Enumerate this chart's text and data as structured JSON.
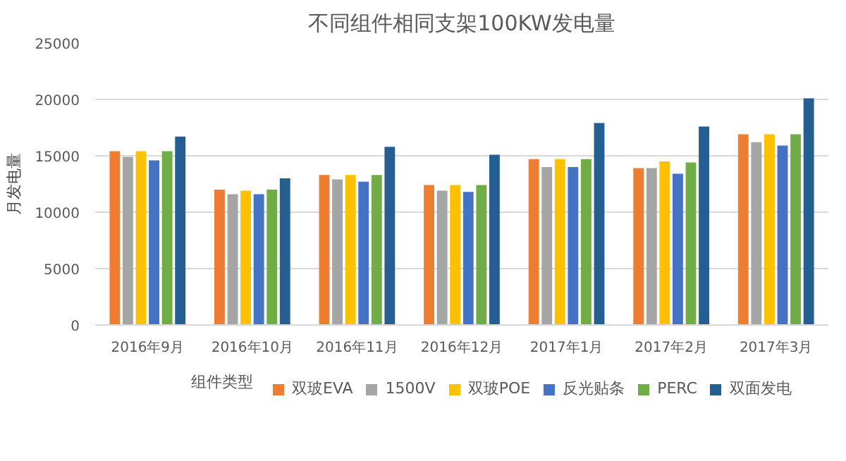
{
  "chart_data": {
    "type": "bar",
    "title": "不同组件相同支架100KW发电量",
    "ylabel": "月发电量",
    "legend_title": "组件类型",
    "categories": [
      "2016年9月",
      "2016年10月",
      "2016年11月",
      "2016年12月",
      "2017年1月",
      "2017年2月",
      "2017年3月"
    ],
    "series": [
      {
        "name": "双玻EVA",
        "color": "#ed7d31",
        "values": [
          15400,
          12000,
          13300,
          12400,
          14700,
          13900,
          16900
        ]
      },
      {
        "name": "1500V",
        "color": "#a5a5a5",
        "values": [
          14900,
          11600,
          12900,
          11900,
          14000,
          13900,
          16200
        ]
      },
      {
        "name": "双玻POE",
        "color": "#ffc000",
        "values": [
          15400,
          11900,
          13300,
          12400,
          14700,
          14500,
          16900
        ]
      },
      {
        "name": "反光贴条",
        "color": "#4472c4",
        "values": [
          14600,
          11600,
          12700,
          11800,
          14000,
          13400,
          15900
        ]
      },
      {
        "name": "PERC",
        "color": "#70ad47",
        "values": [
          15400,
          12000,
          13300,
          12400,
          14700,
          14400,
          16900
        ]
      },
      {
        "name": "双面发电",
        "color": "#255e91",
        "values": [
          16700,
          13000,
          15800,
          15100,
          17900,
          17600,
          20100
        ]
      }
    ],
    "ylim": [
      0,
      25000
    ],
    "yticks": [
      0,
      5000,
      10000,
      15000,
      20000,
      25000
    ],
    "grid": "y",
    "legend": "bottom"
  }
}
